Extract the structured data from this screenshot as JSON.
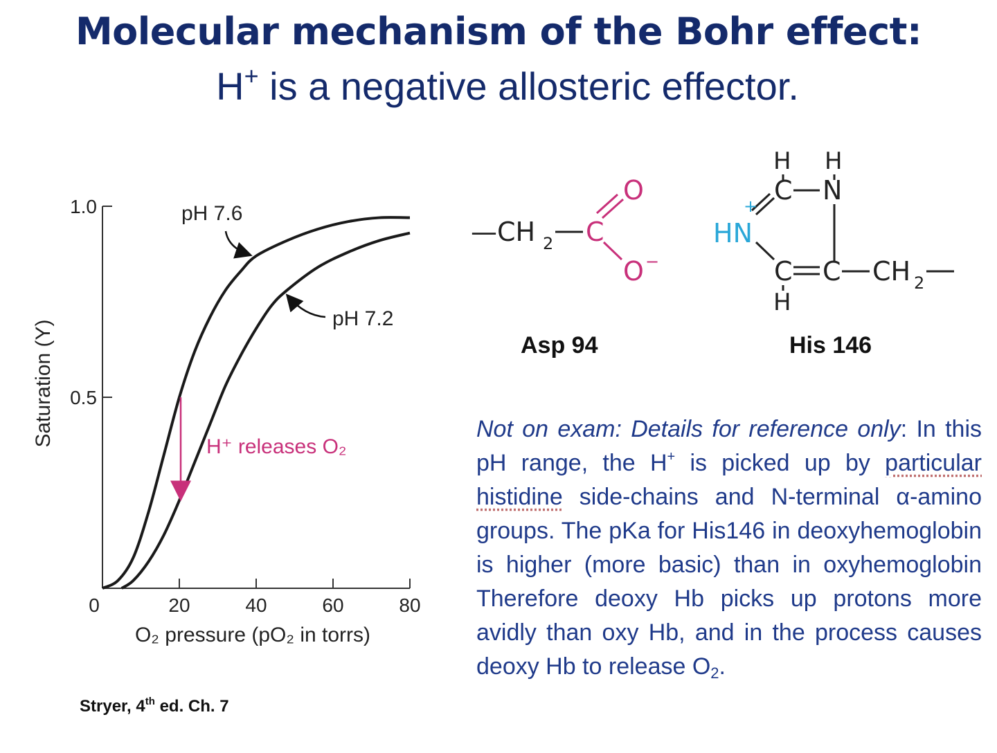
{
  "title": "Molecular mechanism of the Bohr effect:",
  "subtitle_main": "H",
  "subtitle_sup": "+",
  "subtitle_rest": " is a negative allosteric effector.",
  "colors": {
    "title": "#142a6b",
    "magenta": "#c8307a",
    "cyan": "#2aa7d8",
    "note": "#1f3a8a"
  },
  "chart_data": {
    "type": "line",
    "xlabel": "O₂ pressure (pO₂ in torrs)",
    "ylabel": "Saturation (Y)",
    "xlim": [
      0,
      80
    ],
    "ylim": [
      0,
      1.0
    ],
    "xticks": [
      "0",
      "20",
      "40",
      "60",
      "80"
    ],
    "yticks": [
      "0.5",
      "1.0"
    ],
    "series": [
      {
        "name": "pH 7.6",
        "x": [
          0,
          4,
          8,
          12,
          16,
          20,
          24,
          28,
          32,
          36,
          40,
          48,
          56,
          64,
          72,
          80
        ],
        "y": [
          0,
          0.02,
          0.08,
          0.2,
          0.35,
          0.5,
          0.62,
          0.71,
          0.78,
          0.83,
          0.87,
          0.91,
          0.94,
          0.96,
          0.97,
          0.97
        ]
      },
      {
        "name": "pH 7.2",
        "x": [
          5,
          8,
          12,
          16,
          20,
          24,
          28,
          32,
          36,
          40,
          44,
          48,
          56,
          64,
          72,
          80
        ],
        "y": [
          0,
          0.02,
          0.07,
          0.14,
          0.23,
          0.33,
          0.43,
          0.53,
          0.61,
          0.68,
          0.74,
          0.78,
          0.84,
          0.88,
          0.91,
          0.93
        ]
      }
    ],
    "annotations": [
      {
        "text": "pH 7.6",
        "target": "pH 7.6"
      },
      {
        "text": "pH 7.2",
        "target": "pH 7.2"
      },
      {
        "text": "H⁺ releases O₂",
        "x": 20,
        "from_y": 0.5,
        "to_y": 0.23
      }
    ]
  },
  "chem": {
    "asp": {
      "name": "Asp 94",
      "ch2": "—CH",
      "ch2_sub": "2",
      "c": "C",
      "o": "O",
      "o_minus": "O",
      "minus": "−"
    },
    "his": {
      "name": "His 146",
      "h": "H",
      "c": "C",
      "n": "N",
      "hn": "HN",
      "plus": "+",
      "ch2": "CH",
      "ch2_sub": "2"
    }
  },
  "note": {
    "lead": "Not on exam: Details for reference only",
    "t1": ": In this pH range, the H",
    "t1_sup": "+",
    "t2": " is picked up by ",
    "w1": "particular",
    "t3": " ",
    "w2": "histidine",
    "t4": " side-chains and N-terminal α-amino groups. The pKa for His146 in deoxyhemoglobin is higher (more basic) than in oxyhemoglobin Therefore deoxy Hb picks up protons more avidly than oxy Hb, and in the process causes deoxy Hb to release O",
    "t4_sub": "2",
    "t5": "."
  },
  "credit": {
    "text": "Stryer, 4",
    "sup": "th",
    "rest": " ed. Ch. 7"
  }
}
